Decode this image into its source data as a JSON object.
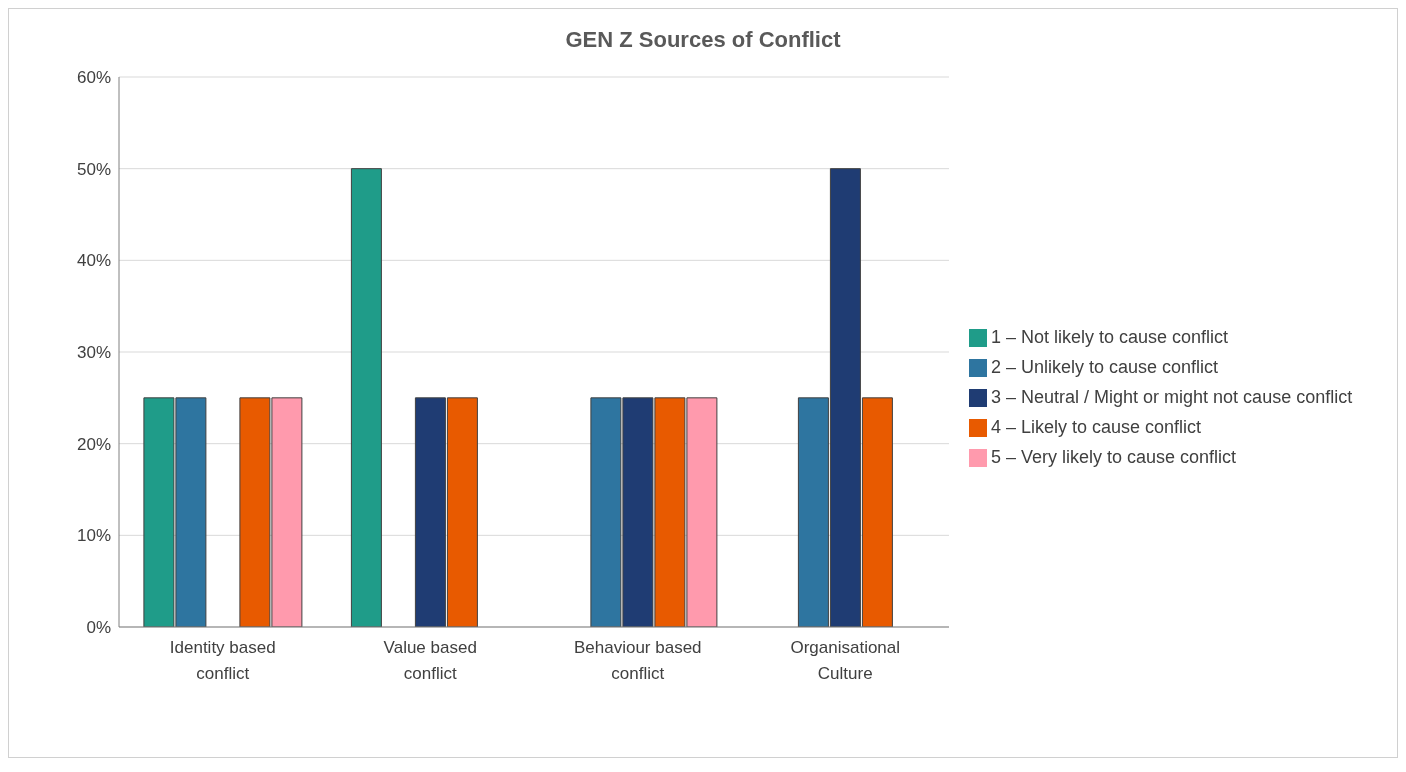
{
  "chart_data": {
    "type": "bar",
    "title": "GEN Z Sources of Conflict",
    "categories": [
      "Identity based conflict",
      "Value based conflict",
      "Behaviour based conflict",
      "Organisational Culture"
    ],
    "series": [
      {
        "name": "1 – Not likely to cause conflict",
        "color": "#1f9c89",
        "values": [
          25,
          50,
          0,
          0
        ]
      },
      {
        "name": "2 – Unlikely to cause conflict",
        "color": "#2e75a0",
        "values": [
          25,
          0,
          25,
          25
        ]
      },
      {
        "name": "3 – Neutral / Might or might not cause conflict",
        "color": "#1f3c73",
        "values": [
          0,
          25,
          25,
          50
        ]
      },
      {
        "name": "4 – Likely to cause conflict",
        "color": "#e85a00",
        "values": [
          25,
          25,
          25,
          25
        ]
      },
      {
        "name": "5 – Very likely to cause conflict",
        "color": "#ff9aad",
        "values": [
          25,
          0,
          25,
          0
        ]
      }
    ],
    "ylim": [
      0,
      60
    ],
    "yticks": [
      {
        "value": 0,
        "label": "0%"
      },
      {
        "value": 10,
        "label": "10%"
      },
      {
        "value": 20,
        "label": "20%"
      },
      {
        "value": 30,
        "label": "30%"
      },
      {
        "value": 40,
        "label": "40%"
      },
      {
        "value": 50,
        "label": "50%"
      },
      {
        "value": 60,
        "label": "60%"
      }
    ],
    "grid": "y",
    "legend": "right"
  }
}
